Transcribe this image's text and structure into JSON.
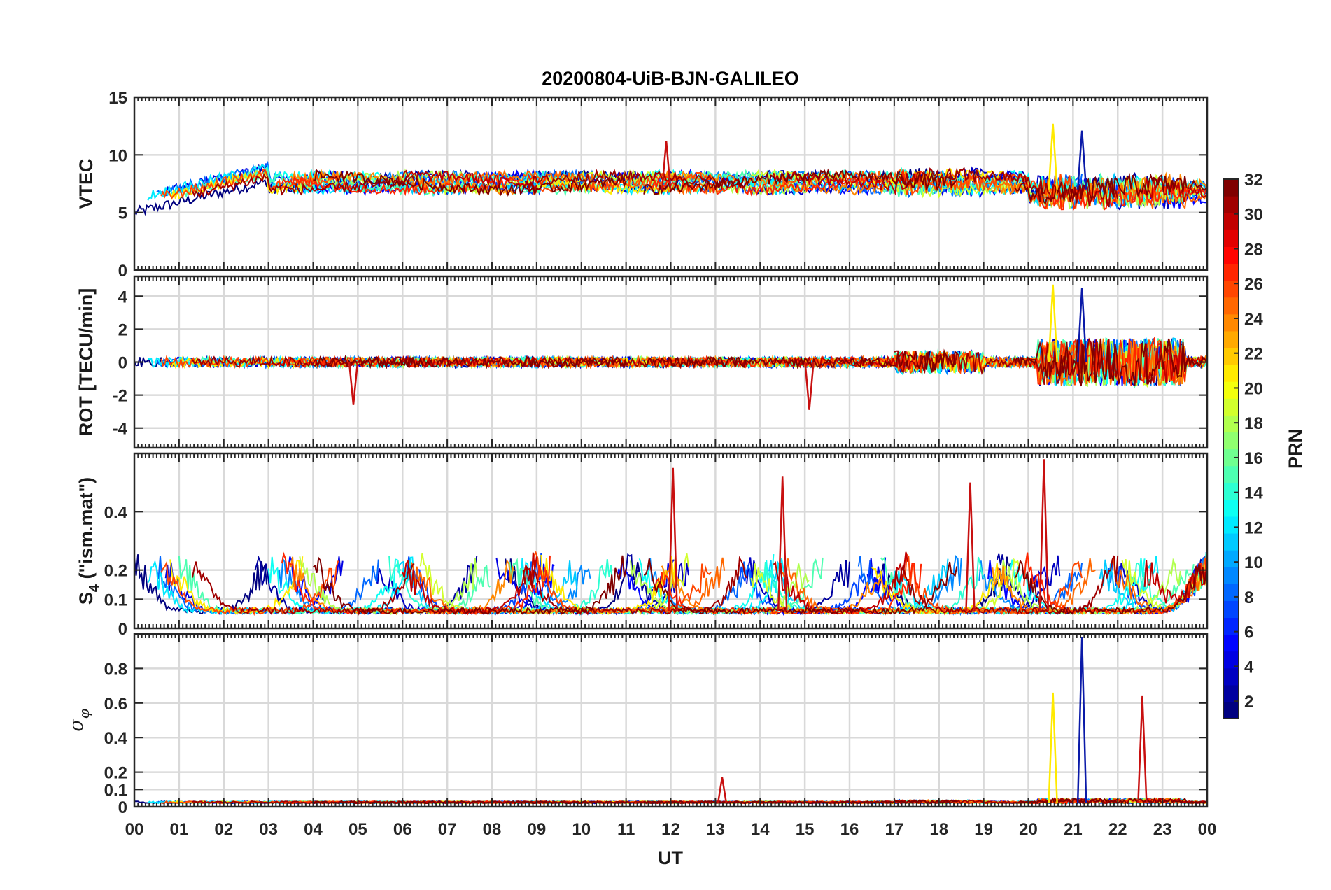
{
  "chart_data": {
    "type": "line",
    "title": "20200804-UiB-BJN-GALILEO",
    "xlabel": "UT",
    "x_tick_labels": [
      "00",
      "01",
      "02",
      "03",
      "04",
      "05",
      "06",
      "07",
      "08",
      "09",
      "10",
      "11",
      "12",
      "13",
      "14",
      "15",
      "16",
      "17",
      "18",
      "19",
      "20",
      "21",
      "22",
      "23",
      "00"
    ],
    "xlim_hours": [
      0,
      24
    ],
    "grid": true,
    "colormap": "jet",
    "colorbar": {
      "label": "PRN",
      "range": [
        1,
        32
      ],
      "tick_labels": [
        "2",
        "4",
        "6",
        "8",
        "10",
        "12",
        "14",
        "16",
        "18",
        "20",
        "22",
        "24",
        "26",
        "28",
        "30",
        "32"
      ],
      "placement": "right"
    },
    "panels": [
      {
        "id": "vtec",
        "ylabel": "VTEC",
        "ylim": [
          0,
          15
        ],
        "y_tick_labels": [
          "0",
          "5",
          "10",
          "15"
        ],
        "typical_level": 7.5,
        "events": [
          {
            "time_ut": 11.9,
            "peak": 11.2
          },
          {
            "time_ut": 20.55,
            "peak": 12.7
          },
          {
            "time_ut": 21.2,
            "peak": 12.1
          }
        ]
      },
      {
        "id": "rot",
        "ylabel": "ROT [TECU/min]",
        "ylim": [
          -5.2,
          5.2
        ],
        "y_tick_labels": [
          "-4",
          "-2",
          "0",
          "2",
          "4"
        ],
        "events": [
          {
            "time_ut": 20.55,
            "peak": 4.7
          },
          {
            "time_ut": 21.2,
            "peak": 4.5
          },
          {
            "time_ut": 15.1,
            "peak": -2.9
          },
          {
            "time_ut": 4.9,
            "peak": -2.6
          }
        ]
      },
      {
        "id": "s4",
        "ylabel": "S4 (\"ism.mat\")",
        "ylabel_main": "S",
        "ylabel_sub": "4",
        "ylabel_rest": " (\"ism.mat\")",
        "ylim": [
          0,
          0.6
        ],
        "y_tick_labels": [
          "0",
          "0.1",
          "0.2",
          "0.4"
        ],
        "events": [
          {
            "time_ut": 12.05,
            "peak": 0.55
          },
          {
            "time_ut": 14.5,
            "peak": 0.52
          },
          {
            "time_ut": 18.7,
            "peak": 0.5
          },
          {
            "time_ut": 20.35,
            "peak": 0.58
          }
        ]
      },
      {
        "id": "sigma_phi",
        "ylabel": "σ φ",
        "ylabel_main": "σ",
        "ylabel_sub": "φ",
        "ylim": [
          0,
          1.0
        ],
        "y_tick_labels": [
          "0",
          "0.1",
          "0.2",
          "0.4",
          "0.6",
          "0.8"
        ],
        "events": [
          {
            "time_ut": 20.55,
            "peak": 0.66
          },
          {
            "time_ut": 21.2,
            "peak": 0.98
          },
          {
            "time_ut": 22.55,
            "peak": 0.64
          },
          {
            "time_ut": 13.15,
            "peak": 0.17
          }
        ]
      }
    ]
  }
}
